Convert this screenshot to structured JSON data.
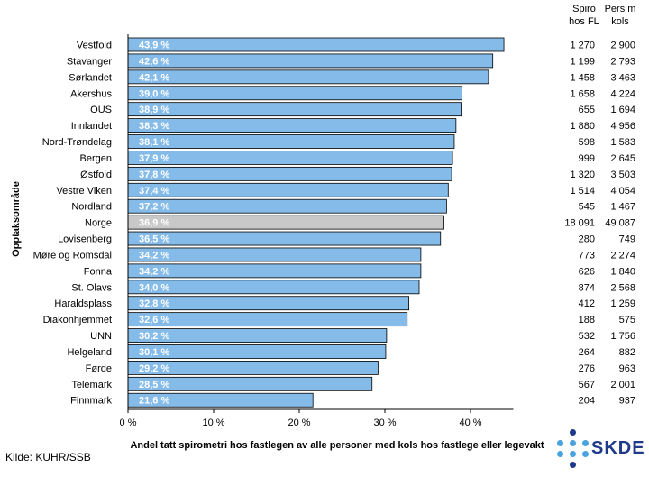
{
  "chart_data": {
    "type": "bar",
    "orientation": "horizontal",
    "xlabel": "Andel tatt spirometri hos fastlegen av alle personer med kols hos fastlege eller legevakt",
    "ylabel": "Opptaksområde",
    "xlim": [
      0,
      45
    ],
    "xticks": [
      "0 %",
      "10 %",
      "20 %",
      "30 %",
      "40 %"
    ],
    "xtick_values": [
      0,
      10,
      20,
      30,
      40
    ],
    "bar_color": "#85bbe9",
    "highlight_color": "#c8c8c8",
    "highlight_category": "Norge",
    "categories": [
      "Vestfold",
      "Stavanger",
      "Sørlandet",
      "Akershus",
      "OUS",
      "Innlandet",
      "Nord-Trøndelag",
      "Bergen",
      "Østfold",
      "Vestre Viken",
      "Nordland",
      "Norge",
      "Lovisenberg",
      "Møre og Romsdal",
      "Fonna",
      "St. Olavs",
      "Haraldsplass",
      "Diakonhjemmet",
      "UNN",
      "Helgeland",
      "Førde",
      "Telemark",
      "Finnmark"
    ],
    "values": [
      43.9,
      42.6,
      42.1,
      39.0,
      38.9,
      38.3,
      38.1,
      37.9,
      37.8,
      37.4,
      37.2,
      36.9,
      36.5,
      34.2,
      34.2,
      34.0,
      32.8,
      32.6,
      30.2,
      30.1,
      29.2,
      28.5,
      21.6
    ],
    "value_labels": [
      "43,9 %",
      "42,6 %",
      "42,1 %",
      "39,0 %",
      "38,9 %",
      "38,3 %",
      "38,1 %",
      "37,9 %",
      "37,8 %",
      "37,4 %",
      "37,2 %",
      "36,9 %",
      "36,5 %",
      "34,2 %",
      "34,2 %",
      "34,0 %",
      "32,8 %",
      "32,6 %",
      "30,2 %",
      "30,1 %",
      "29,2 %",
      "28,5 %",
      "21,6 %"
    ],
    "table_headers": [
      [
        "Spiro",
        "hos FL"
      ],
      [
        "Pers m",
        "kols"
      ]
    ],
    "table_columns": [
      [
        "1 270",
        "1 199",
        "1 458",
        "1 658",
        "655",
        "1 880",
        "598",
        "999",
        "1 320",
        "1 514",
        "545",
        "18 091",
        "280",
        "773",
        "626",
        "874",
        "412",
        "188",
        "532",
        "264",
        "276",
        "567",
        "204"
      ],
      [
        "2 900",
        "2 793",
        "3 463",
        "4 224",
        "1 694",
        "4 956",
        "1 583",
        "2 645",
        "3 503",
        "4 054",
        "1 467",
        "49 087",
        "749",
        "2 274",
        "1 840",
        "2 568",
        "1 259",
        "575",
        "1 756",
        "882",
        "963",
        "2 001",
        "937"
      ]
    ]
  },
  "source": "Kilde: KUHR/SSB",
  "logo": {
    "text": "SKDE",
    "color": "#1f3a8a",
    "dot_color": "#4aa3df"
  }
}
